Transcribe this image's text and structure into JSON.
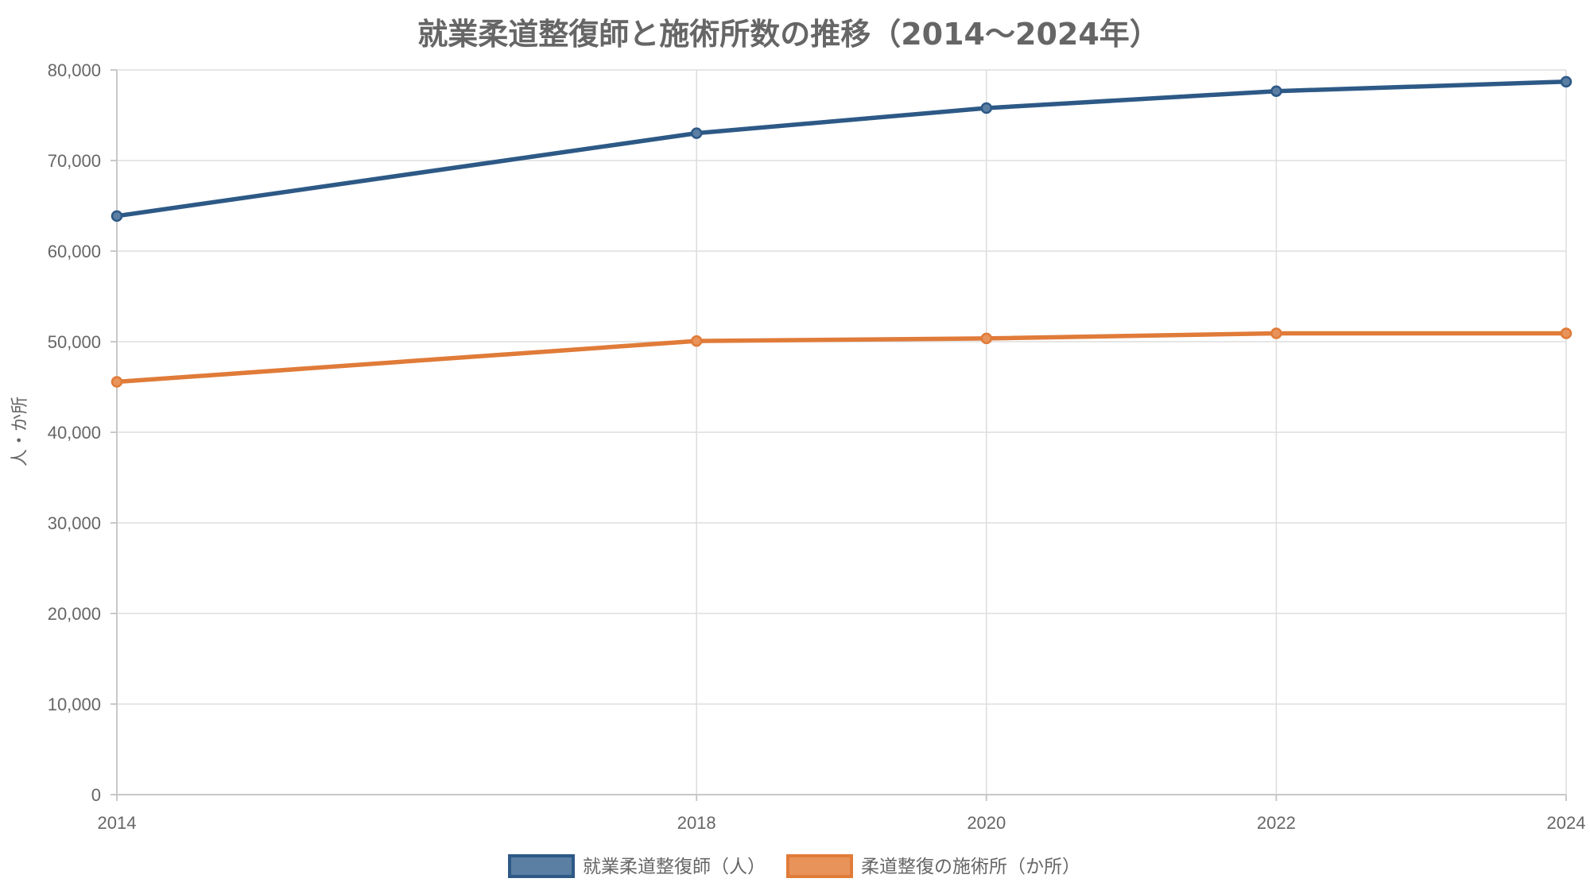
{
  "chart_data": {
    "type": "line",
    "title": "就業柔道整復師と施術所数の推移（2014〜2024年）",
    "xlabel": "",
    "ylabel": "人・か所",
    "x": [
      "2014",
      "2018",
      "2020",
      "2022",
      "2024"
    ],
    "x_numeric": [
      2014,
      2018,
      2020,
      2022,
      2024
    ],
    "xlim": [
      2014,
      2024
    ],
    "ylim": [
      0,
      80000
    ],
    "yticks": [
      0,
      10000,
      20000,
      30000,
      40000,
      50000,
      60000,
      70000,
      80000
    ],
    "ytick_labels": [
      "0",
      "10,000",
      "20,000",
      "30,000",
      "40,000",
      "50,000",
      "60,000",
      "70,000",
      "80,000"
    ],
    "grid": true,
    "legend_position": "bottom",
    "series": [
      {
        "name": "就業柔道整復師（人）",
        "values": [
          63873,
          73017,
          75786,
          77658,
          78700
        ],
        "color": "#2d5986",
        "fill": "#5b7ea3"
      },
      {
        "name": "柔道整復の施術所（か所）",
        "values": [
          45572,
          50077,
          50364,
          50919,
          50919
        ],
        "color": "#e07b39",
        "fill": "#e8935a"
      }
    ]
  }
}
